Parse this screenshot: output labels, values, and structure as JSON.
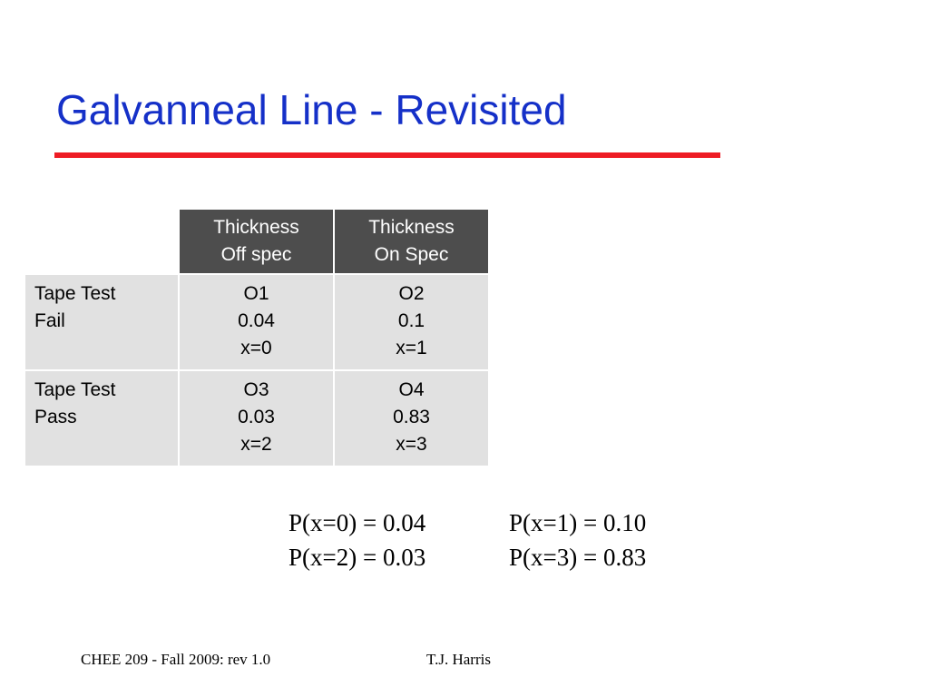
{
  "slide": {
    "title": "Galvanneal Line - Revisited"
  },
  "table": {
    "columns": [
      {
        "line1": "Thickness",
        "line2": "Off spec"
      },
      {
        "line1": "Thickness",
        "line2": "On Spec"
      }
    ],
    "rows": [
      {
        "label_line1": "Tape Test",
        "label_line2": "Fail",
        "cells": [
          {
            "id": "O1",
            "value": "0.04",
            "x": "x=0"
          },
          {
            "id": "O2",
            "value": "0.1",
            "x": "x=1"
          }
        ]
      },
      {
        "label_line1": "Tape Test",
        "label_line2": "Pass",
        "cells": [
          {
            "id": "O3",
            "value": "0.03",
            "x": "x=2"
          },
          {
            "id": "O4",
            "value": "0.83",
            "x": "x=3"
          }
        ]
      }
    ]
  },
  "probabilities": [
    {
      "left": "P(x=0) = 0.04",
      "right": "P(x=1) = 0.10"
    },
    {
      "left": "P(x=2)  = 0.03",
      "right": "P(x=3) = 0.83"
    }
  ],
  "footer": {
    "course": "CHEE 209 - Fall 2009: rev 1.0",
    "author": "T.J. Harris"
  },
  "colors": {
    "title": "#1530c8",
    "title_rule": "#ee1c24",
    "header_bg": "#4d4d4d",
    "cell_bg": "#e1e1e1"
  }
}
